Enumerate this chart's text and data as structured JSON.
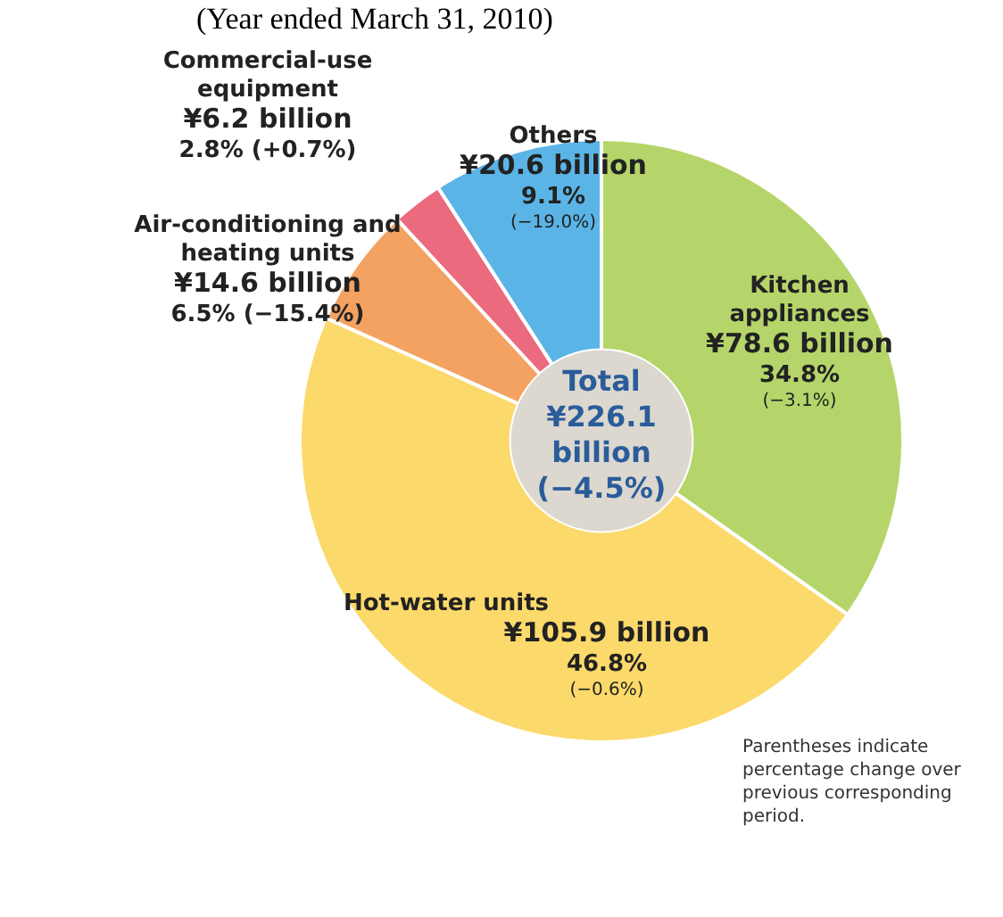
{
  "chart_data": {
    "type": "donut",
    "subtitle": "(Year ended March 31, 2010)",
    "categories": [
      "Kitchen appliances",
      "Hot-water units",
      "Air-conditioning and heating units",
      "Commercial-use equipment",
      "Others"
    ],
    "values": [
      78.6,
      105.9,
      14.6,
      6.2,
      20.6
    ],
    "colors": [
      "#b5d56a",
      "#fbd96b",
      "#f3a261",
      "#ec6a7e",
      "#5bb4e6"
    ],
    "value_labels": [
      "¥78.6 billion",
      "¥105.9 billion",
      "¥14.6 billion",
      "¥6.2 billion",
      "¥20.6 billion"
    ],
    "annotations": [
      "Total ¥226.1 billion (−4.5%)",
      "Parentheses indicate percentage change over previous corresponding period.",
      {
        "text": "34.8%\n(−3.1%)",
        "x": "Kitchen appliances"
      },
      {
        "text": "46.8%\n(−0.6%)",
        "x": "Hot-water units"
      },
      {
        "text": "6.5% (−15.4%)",
        "x": "Air-conditioning and heating units"
      },
      {
        "text": "2.8% (+0.7%)",
        "x": "Commercial-use equipment"
      },
      {
        "text": "9.1%\n(−19.0%)",
        "x": "Others"
      }
    ]
  }
}
